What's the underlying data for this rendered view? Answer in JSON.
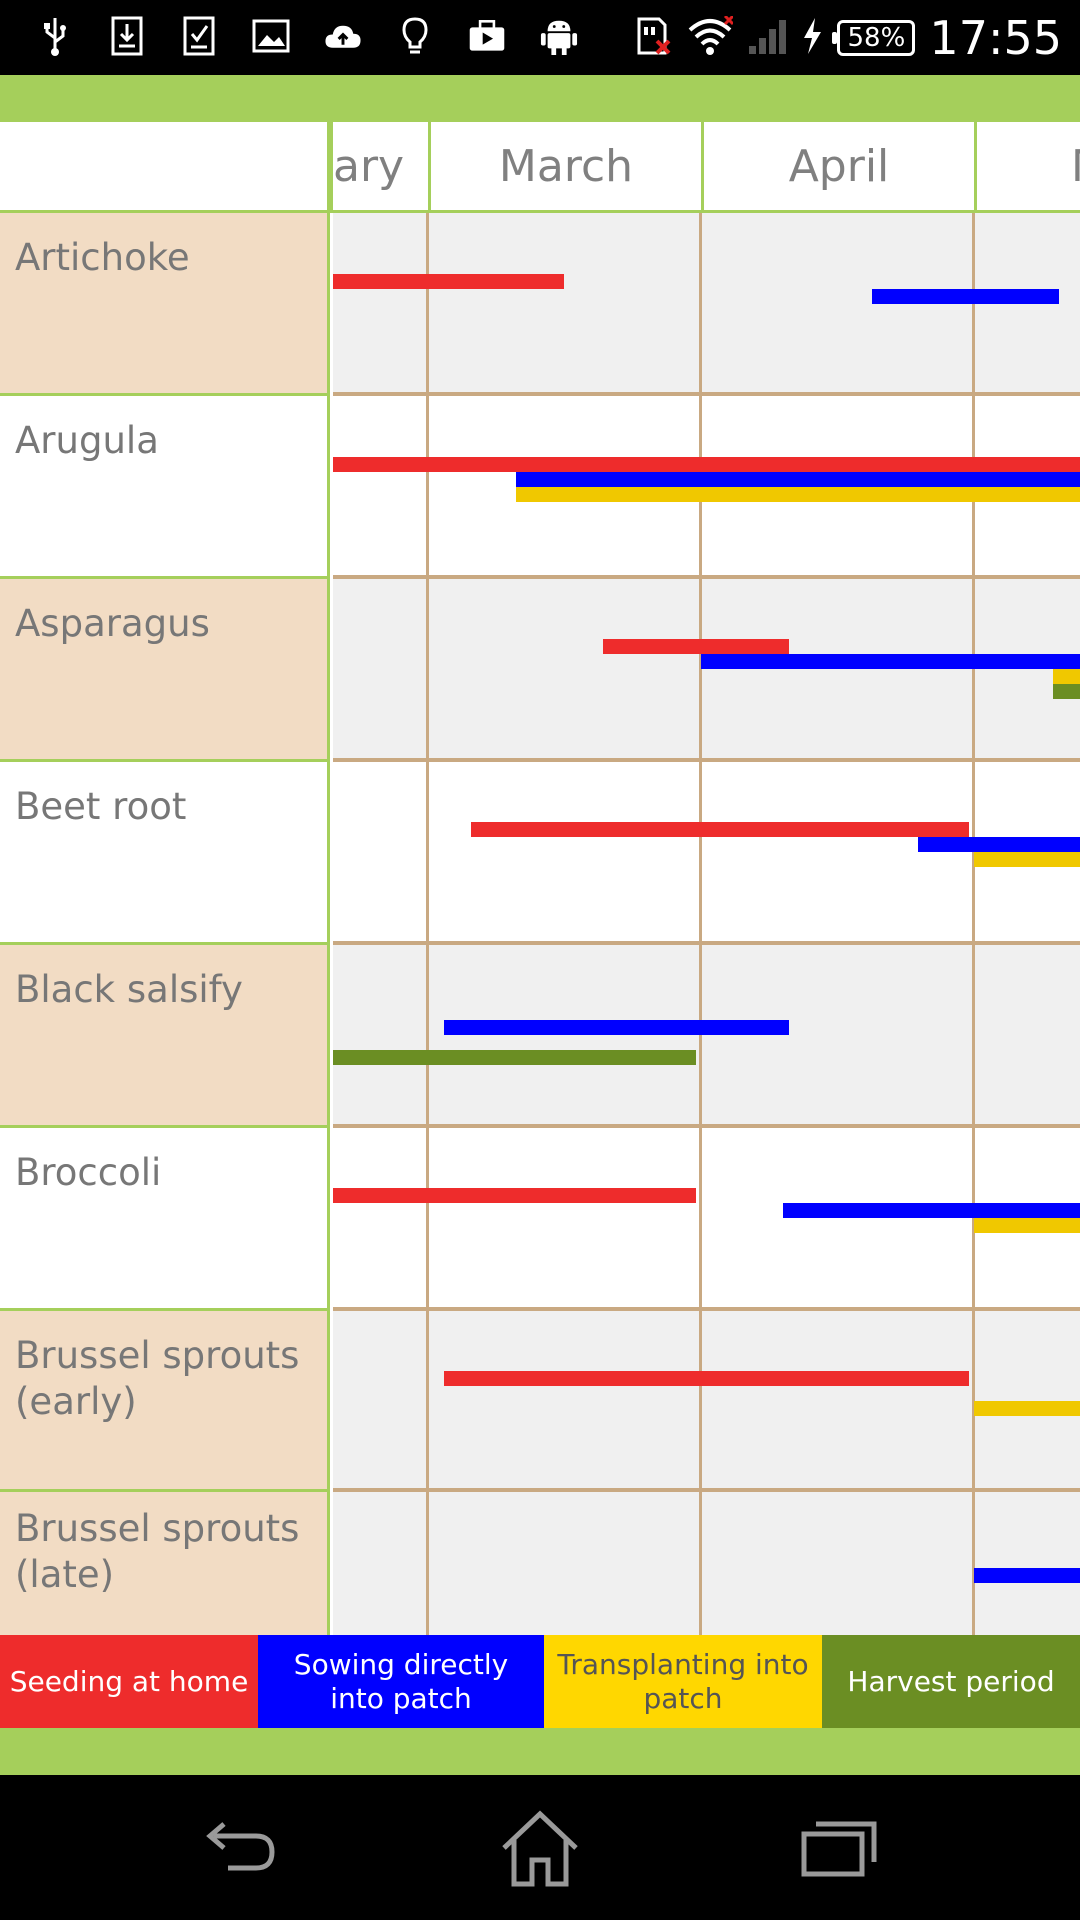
{
  "status_bar": {
    "icons": [
      "usb-icon",
      "download-icon",
      "checklist-icon",
      "image-icon",
      "cloud-upload-icon",
      "lightbulb-icon",
      "briefcase-icon",
      "android-icon",
      "sd-card-error-icon",
      "wifi-icon",
      "signal-icon",
      "charging-icon"
    ],
    "battery": "58%",
    "time": "17:55"
  },
  "header": {
    "months": [
      "ary",
      "March",
      "April",
      "M"
    ]
  },
  "crops": [
    {
      "name": "Artichoke"
    },
    {
      "name": "Arugula"
    },
    {
      "name": "Asparagus"
    },
    {
      "name": "Beet root"
    },
    {
      "name": "Black salsify"
    },
    {
      "name": "Broccoli"
    },
    {
      "name": "Brussel sprouts\n(early)"
    },
    {
      "name": "Brussel sprouts\n(late)"
    }
  ],
  "legend": [
    {
      "label": "Seeding at home",
      "color": "#ee2c2c",
      "text_color": "#ffffff"
    },
    {
      "label": "Sowing directly into patch",
      "color": "#0000ff",
      "text_color": "#ffffff"
    },
    {
      "label": "Transplanting into patch",
      "color": "#ffd700",
      "text_color": "#555555"
    },
    {
      "label": "Harvest period",
      "color": "#6b8e23",
      "text_color": "#ffffff"
    }
  ],
  "colors": {
    "accent_green": "#a5cf5b",
    "row_tan": "#f2dcc4",
    "grid_line": "#c9a982",
    "seed": "#ee2c2c",
    "sow": "#0000ff",
    "transplant": "#f0c800",
    "harvest": "#6b8e23"
  },
  "nav": {
    "icons": [
      "back-icon",
      "home-icon",
      "recent-apps-icon"
    ]
  }
}
